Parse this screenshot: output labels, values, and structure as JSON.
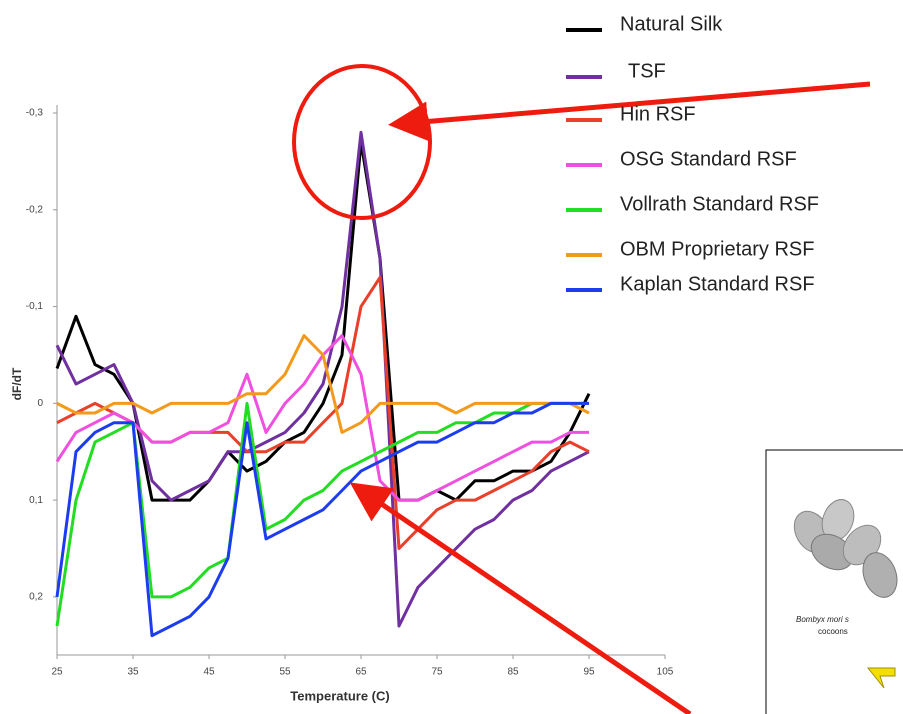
{
  "chart_data": {
    "type": "line",
    "x_label": "Temperature (C)",
    "y_label": "dF/dT",
    "x": [
      25,
      27.5,
      30,
      32.5,
      35,
      37.5,
      40,
      42.5,
      45,
      47.5,
      50,
      52.5,
      55,
      57.5,
      60,
      62.5,
      65,
      67.5,
      70,
      72.5,
      75,
      77.5,
      80,
      82.5,
      85,
      87.5,
      90,
      92.5,
      95
    ],
    "xlim": [
      25,
      105
    ],
    "xticks": [
      25,
      35,
      45,
      55,
      65,
      75,
      85,
      95,
      105
    ],
    "ylim": [
      -0.3,
      0.26
    ],
    "y_inverted": true,
    "yticks": [
      {
        "value": -0.3,
        "label": "-0,3"
      },
      {
        "value": -0.2,
        "label": "-0,2"
      },
      {
        "value": -0.1,
        "label": "-0,1"
      },
      {
        "value": 0,
        "label": "0"
      },
      {
        "value": 0.1,
        "label": "0,1"
      },
      {
        "value": 0.2,
        "label": "0,2"
      }
    ],
    "legend": "top-right",
    "series": [
      {
        "name": "Natural Silk",
        "color": "#000000",
        "values": [
          -0.036,
          -0.09,
          -0.04,
          -0.03,
          0.0,
          0.1,
          0.1,
          0.1,
          0.08,
          0.05,
          0.07,
          0.06,
          0.04,
          0.03,
          0.0,
          -0.05,
          -0.27,
          -0.15,
          0.1,
          0.1,
          0.09,
          0.1,
          0.08,
          0.08,
          0.07,
          0.07,
          0.06,
          0.03,
          -0.01
        ]
      },
      {
        "name": "TSF",
        "color": "#7030a0",
        "values": [
          -0.06,
          -0.02,
          -0.03,
          -0.04,
          0.0,
          0.08,
          0.1,
          0.09,
          0.08,
          0.05,
          0.05,
          0.04,
          0.03,
          0.01,
          -0.02,
          -0.1,
          -0.28,
          -0.15,
          0.23,
          0.19,
          0.17,
          0.15,
          0.13,
          0.12,
          0.1,
          0.09,
          0.07,
          0.06,
          0.05
        ]
      },
      {
        "name": "Hin RSF",
        "color": "#e8402a",
        "values": [
          0.02,
          0.01,
          0.0,
          0.01,
          0.02,
          0.04,
          0.04,
          0.03,
          0.03,
          0.03,
          0.05,
          0.05,
          0.04,
          0.04,
          0.02,
          0.0,
          -0.1,
          -0.13,
          0.15,
          0.13,
          0.11,
          0.1,
          0.1,
          0.09,
          0.08,
          0.07,
          0.05,
          0.04,
          0.05
        ]
      },
      {
        "name": "OSG Standard RSF",
        "color": "#f050e0",
        "values": [
          0.06,
          0.03,
          0.02,
          0.01,
          0.02,
          0.04,
          0.04,
          0.03,
          0.03,
          0.02,
          -0.03,
          0.03,
          0.0,
          -0.02,
          -0.05,
          -0.07,
          -0.03,
          0.08,
          0.1,
          0.1,
          0.09,
          0.08,
          0.07,
          0.06,
          0.05,
          0.04,
          0.04,
          0.03,
          0.03
        ]
      },
      {
        "name": "Vollrath Standard RSF",
        "color": "#22dd22",
        "values": [
          0.23,
          0.1,
          0.04,
          0.03,
          0.02,
          0.2,
          0.2,
          0.19,
          0.17,
          0.16,
          0.0,
          0.13,
          0.12,
          0.1,
          0.09,
          0.07,
          0.06,
          0.05,
          0.04,
          0.03,
          0.03,
          0.02,
          0.02,
          0.01,
          0.01,
          0.0,
          0.0,
          0.0,
          0.0
        ]
      },
      {
        "name": "OBM Proprietary RSF",
        "color": "#f39a1c",
        "values": [
          0.0,
          0.01,
          0.01,
          0.0,
          0.0,
          0.01,
          0.0,
          0.0,
          0.0,
          0.0,
          -0.01,
          -0.01,
          -0.03,
          -0.07,
          -0.05,
          0.03,
          0.02,
          0.0,
          0.0,
          0.0,
          0.0,
          0.01,
          0.0,
          0.0,
          0.0,
          0.0,
          0.0,
          0.0,
          0.01
        ]
      },
      {
        "name": "Kaplan Standard RSF",
        "color": "#1c3cf0",
        "values": [
          0.2,
          0.05,
          0.03,
          0.02,
          0.02,
          0.24,
          0.23,
          0.22,
          0.2,
          0.16,
          0.02,
          0.14,
          0.13,
          0.12,
          0.11,
          0.09,
          0.07,
          0.06,
          0.05,
          0.04,
          0.04,
          0.03,
          0.02,
          0.02,
          0.01,
          0.01,
          0.0,
          0.0,
          0.0
        ]
      }
    ],
    "inset_caption": [
      "Bombyx mori s",
      "cocoons"
    ]
  }
}
